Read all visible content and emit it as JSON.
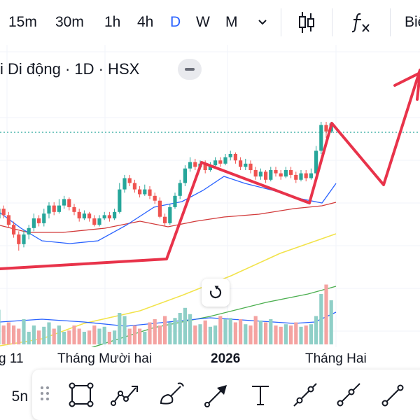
{
  "toolbar": {
    "timeframes": [
      "15m",
      "30m",
      "1h",
      "4h",
      "D",
      "W",
      "M"
    ],
    "active_timeframe": "D",
    "more_timeframes_icon": "chevron-down-icon",
    "chart_type_icon": "candlestick-icon",
    "indicators_icon": "fx-icon",
    "right_label": "Biể"
  },
  "legend": {
    "symbol_title": "i Di động · 1D · HSX"
  },
  "time_axis": {
    "labels": [
      "g 11",
      "Tháng Mười hai",
      "2026",
      "Tháng Hai"
    ]
  },
  "drawing_toolbar": {
    "left_label": "5n",
    "tools": [
      "rectangle-icon",
      "path-icon",
      "brush-icon",
      "arrow-icon",
      "text-icon",
      "trend-line-icon",
      "ray-icon",
      "extended-line-icon"
    ]
  },
  "colors": {
    "accent": "#2962ff",
    "up_candle": "#26a69a",
    "down_candle": "#ef5350",
    "drawing": "#e8334a",
    "ma_blue": "#2962ff",
    "ma_red": "#d23a3a",
    "ma_yellow": "#f2e34b",
    "ma_green": "#4caf50"
  },
  "chart_data": {
    "type": "candlestick",
    "interval": "1D",
    "exchange": "HSX",
    "x_axis_labels": [
      "g 11",
      "Tháng Mười hai",
      "2026",
      "Tháng Hai"
    ],
    "candles": [
      {
        "o": 0.4,
        "c": 0.46,
        "h": 0.49,
        "l": 0.37
      },
      {
        "o": 0.46,
        "c": 0.42,
        "h": 0.48,
        "l": 0.4
      },
      {
        "o": 0.42,
        "c": 0.36,
        "h": 0.44,
        "l": 0.34
      },
      {
        "o": 0.36,
        "c": 0.3,
        "h": 0.38,
        "l": 0.28
      },
      {
        "o": 0.3,
        "c": 0.24,
        "h": 0.32,
        "l": 0.2
      },
      {
        "o": 0.24,
        "c": 0.3,
        "h": 0.33,
        "l": 0.22
      },
      {
        "o": 0.3,
        "c": 0.34,
        "h": 0.36,
        "l": 0.27
      },
      {
        "o": 0.34,
        "c": 0.4,
        "h": 0.43,
        "l": 0.32
      },
      {
        "o": 0.4,
        "c": 0.37,
        "h": 0.42,
        "l": 0.35
      },
      {
        "o": 0.37,
        "c": 0.43,
        "h": 0.46,
        "l": 0.35
      },
      {
        "o": 0.43,
        "c": 0.48,
        "h": 0.5,
        "l": 0.4
      },
      {
        "o": 0.48,
        "c": 0.44,
        "h": 0.5,
        "l": 0.42
      },
      {
        "o": 0.44,
        "c": 0.48,
        "h": 0.52,
        "l": 0.43
      },
      {
        "o": 0.48,
        "c": 0.52,
        "h": 0.54,
        "l": 0.46
      },
      {
        "o": 0.52,
        "c": 0.47,
        "h": 0.53,
        "l": 0.45
      },
      {
        "o": 0.47,
        "c": 0.44,
        "h": 0.49,
        "l": 0.42
      },
      {
        "o": 0.44,
        "c": 0.4,
        "h": 0.46,
        "l": 0.38
      },
      {
        "o": 0.4,
        "c": 0.43,
        "h": 0.45,
        "l": 0.39
      },
      {
        "o": 0.43,
        "c": 0.4,
        "h": 0.44,
        "l": 0.38
      },
      {
        "o": 0.4,
        "c": 0.36,
        "h": 0.42,
        "l": 0.35
      },
      {
        "o": 0.36,
        "c": 0.4,
        "h": 0.42,
        "l": 0.35
      },
      {
        "o": 0.4,
        "c": 0.42,
        "h": 0.44,
        "l": 0.39
      },
      {
        "o": 0.42,
        "c": 0.4,
        "h": 0.44,
        "l": 0.38
      },
      {
        "o": 0.4,
        "c": 0.44,
        "h": 0.46,
        "l": 0.39
      },
      {
        "o": 0.44,
        "c": 0.58,
        "h": 0.62,
        "l": 0.43
      },
      {
        "o": 0.58,
        "c": 0.65,
        "h": 0.67,
        "l": 0.56
      },
      {
        "o": 0.65,
        "c": 0.62,
        "h": 0.67,
        "l": 0.6
      },
      {
        "o": 0.62,
        "c": 0.58,
        "h": 0.64,
        "l": 0.56
      },
      {
        "o": 0.58,
        "c": 0.55,
        "h": 0.6,
        "l": 0.53
      },
      {
        "o": 0.55,
        "c": 0.58,
        "h": 0.61,
        "l": 0.54
      },
      {
        "o": 0.58,
        "c": 0.54,
        "h": 0.6,
        "l": 0.52
      },
      {
        "o": 0.54,
        "c": 0.51,
        "h": 0.56,
        "l": 0.49
      },
      {
        "o": 0.51,
        "c": 0.41,
        "h": 0.53,
        "l": 0.4
      },
      {
        "o": 0.41,
        "c": 0.37,
        "h": 0.43,
        "l": 0.35
      },
      {
        "o": 0.37,
        "c": 0.47,
        "h": 0.49,
        "l": 0.36
      },
      {
        "o": 0.47,
        "c": 0.54,
        "h": 0.56,
        "l": 0.46
      },
      {
        "o": 0.54,
        "c": 0.62,
        "h": 0.64,
        "l": 0.52
      },
      {
        "o": 0.62,
        "c": 0.71,
        "h": 0.73,
        "l": 0.6
      },
      {
        "o": 0.71,
        "c": 0.75,
        "h": 0.78,
        "l": 0.69
      },
      {
        "o": 0.75,
        "c": 0.72,
        "h": 0.77,
        "l": 0.7
      },
      {
        "o": 0.72,
        "c": 0.74,
        "h": 0.76,
        "l": 0.7
      },
      {
        "o": 0.74,
        "c": 0.7,
        "h": 0.76,
        "l": 0.68
      },
      {
        "o": 0.7,
        "c": 0.73,
        "h": 0.75,
        "l": 0.69
      },
      {
        "o": 0.73,
        "c": 0.76,
        "h": 0.78,
        "l": 0.71
      },
      {
        "o": 0.76,
        "c": 0.74,
        "h": 0.78,
        "l": 0.72
      },
      {
        "o": 0.74,
        "c": 0.78,
        "h": 0.8,
        "l": 0.73
      },
      {
        "o": 0.78,
        "c": 0.8,
        "h": 0.82,
        "l": 0.76
      },
      {
        "o": 0.8,
        "c": 0.76,
        "h": 0.81,
        "l": 0.74
      },
      {
        "o": 0.76,
        "c": 0.72,
        "h": 0.78,
        "l": 0.7
      },
      {
        "o": 0.72,
        "c": 0.74,
        "h": 0.77,
        "l": 0.7
      },
      {
        "o": 0.74,
        "c": 0.7,
        "h": 0.76,
        "l": 0.68
      },
      {
        "o": 0.7,
        "c": 0.66,
        "h": 0.72,
        "l": 0.64
      },
      {
        "o": 0.66,
        "c": 0.69,
        "h": 0.71,
        "l": 0.64
      },
      {
        "o": 0.69,
        "c": 0.64,
        "h": 0.7,
        "l": 0.62
      },
      {
        "o": 0.64,
        "c": 0.7,
        "h": 0.72,
        "l": 0.63
      },
      {
        "o": 0.7,
        "c": 0.68,
        "h": 0.72,
        "l": 0.66
      },
      {
        "o": 0.68,
        "c": 0.66,
        "h": 0.7,
        "l": 0.64
      },
      {
        "o": 0.66,
        "c": 0.7,
        "h": 0.72,
        "l": 0.65
      },
      {
        "o": 0.7,
        "c": 0.67,
        "h": 0.72,
        "l": 0.65
      },
      {
        "o": 0.67,
        "c": 0.64,
        "h": 0.69,
        "l": 0.62
      },
      {
        "o": 0.64,
        "c": 0.68,
        "h": 0.7,
        "l": 0.63
      },
      {
        "o": 0.68,
        "c": 0.65,
        "h": 0.7,
        "l": 0.63
      },
      {
        "o": 0.65,
        "c": 0.68,
        "h": 0.71,
        "l": 0.64
      },
      {
        "o": 0.68,
        "c": 0.82,
        "h": 0.85,
        "l": 0.67
      },
      {
        "o": 0.82,
        "c": 0.98,
        "h": 1.0,
        "l": 0.8
      },
      {
        "o": 0.98,
        "c": 0.94,
        "h": 1.0,
        "l": 0.9
      },
      {
        "o": 0.94,
        "c": 0.99,
        "h": 1.0,
        "l": 0.93
      }
    ],
    "volumes": [
      0.55,
      0.3,
      0.35,
      0.3,
      0.25,
      0.4,
      0.2,
      0.3,
      0.22,
      0.28,
      0.35,
      0.25,
      0.3,
      0.2,
      0.22,
      0.3,
      0.25,
      0.2,
      0.22,
      0.3,
      0.25,
      0.28,
      0.2,
      0.22,
      0.5,
      0.45,
      0.25,
      0.3,
      0.25,
      0.2,
      0.35,
      0.4,
      0.3,
      0.45,
      0.35,
      0.42,
      0.5,
      0.58,
      0.48,
      0.3,
      0.32,
      0.38,
      0.28,
      0.3,
      0.45,
      0.4,
      0.42,
      0.35,
      0.4,
      0.32,
      0.3,
      0.45,
      0.38,
      0.35,
      0.4,
      0.3,
      0.28,
      0.32,
      0.3,
      0.35,
      0.28,
      0.3,
      0.32,
      0.45,
      0.8,
      0.95,
      0.7
    ]
  }
}
